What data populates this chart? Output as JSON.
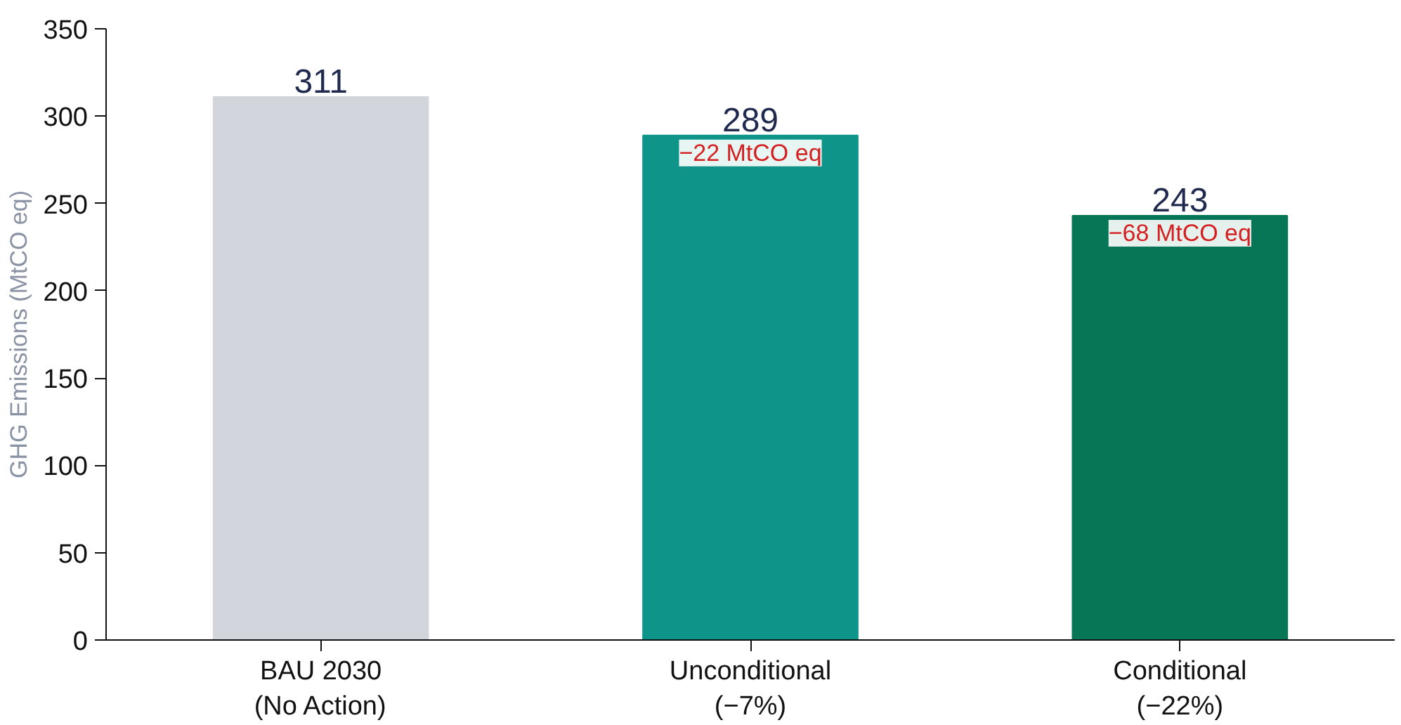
{
  "chart_data": {
    "type": "bar",
    "ylabel": "GHG Emissions (MtCO eq)",
    "categories": [
      "BAU 2030\n(No Action)",
      "Unconditional\n(−7%)",
      "Conditional\n(−22%)"
    ],
    "values": [
      311,
      289,
      243
    ],
    "colors": [
      "#d3d5dc",
      "#0e9488",
      "#077656"
    ],
    "ylim": [
      0,
      350
    ],
    "yticks": [
      0,
      50,
      100,
      150,
      200,
      250,
      300,
      350
    ],
    "grid": false,
    "data_labels": true,
    "annotations": [
      {
        "text": "−22 MtCO eq",
        "x": "Unconditional\n(−7%)",
        "y": 289
      },
      {
        "text": "−68 MtCO eq",
        "x": "Conditional\n(−22%)",
        "y": 243
      }
    ]
  }
}
